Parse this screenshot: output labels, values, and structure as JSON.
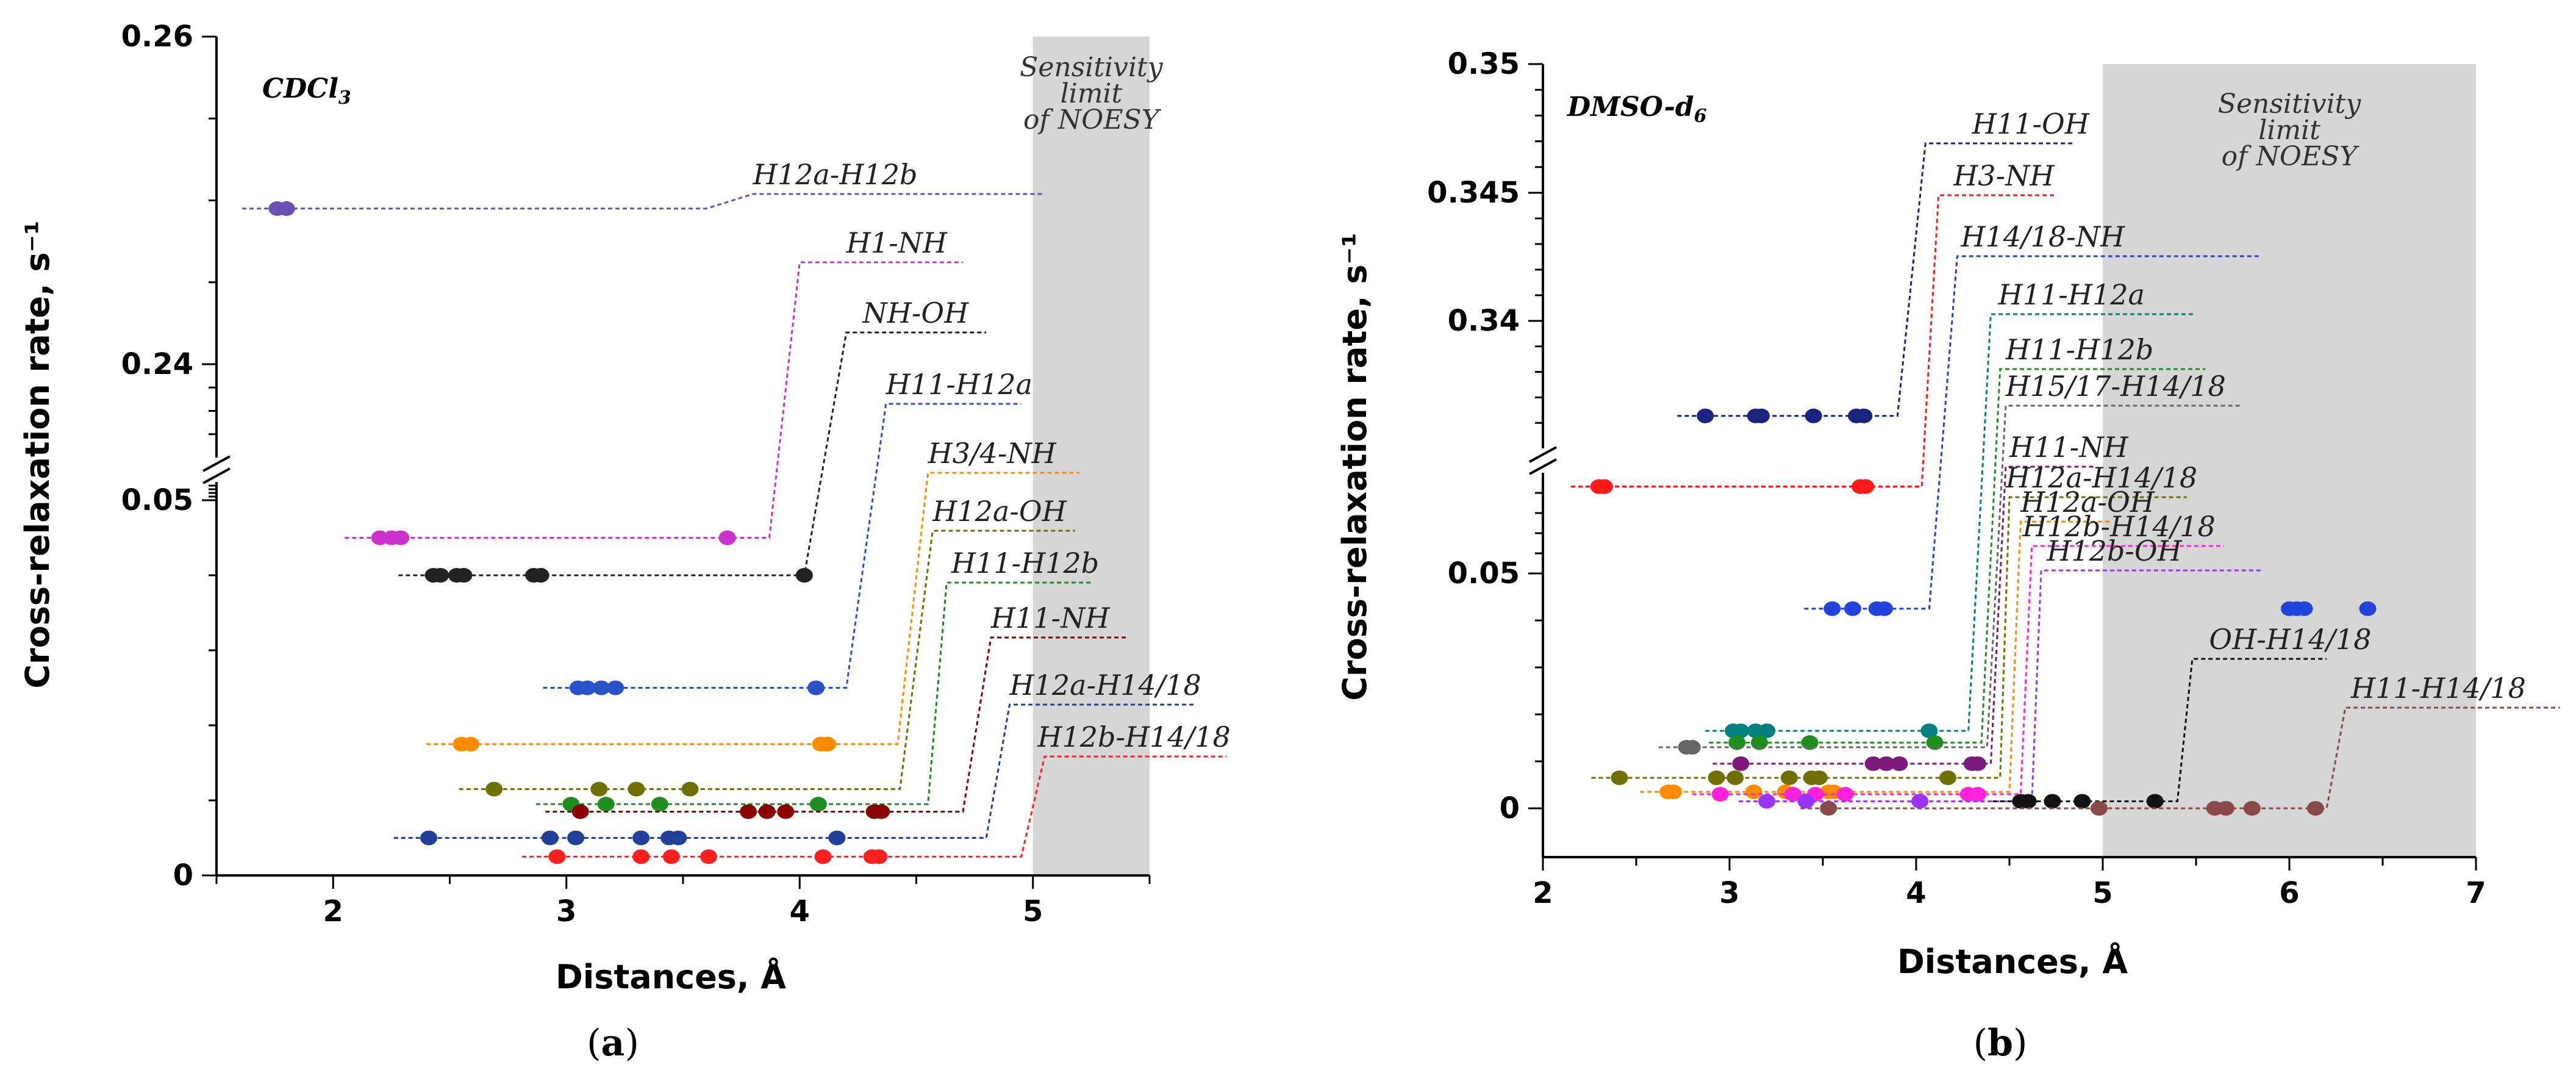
{
  "figure": {
    "captions": [
      {
        "open": "(",
        "letter": "a",
        "close": ")"
      },
      {
        "open": "(",
        "letter": "b",
        "close": ")"
      }
    ],
    "break_symbol": "//"
  },
  "chart_data": [
    {
      "type": "scatter",
      "id": "a",
      "solvent_label": {
        "base": "CDCl",
        "sub": "3"
      },
      "xlabel": "Distances, Å",
      "ylabel": "Cross-relaxation rate, s⁻¹",
      "xlim": [
        1.5,
        5.5
      ],
      "x_ticks": [
        2,
        3,
        4,
        5
      ],
      "y_ticks_lower": [
        "0",
        "0.05"
      ],
      "y_ticks_upper": [
        "0.24",
        "0.26"
      ],
      "y_axis_break": true,
      "sensitivity_limit": {
        "x_range": [
          5.0,
          5.5
        ],
        "lines": [
          "Sensitivity",
          "limit",
          "of NOESY"
        ]
      },
      "series": [
        {
          "label": "H12a-H12b",
          "color": "#6a50b4",
          "level": 0.2495,
          "step_x": [
            3.6,
            3.8
          ],
          "label_x": 3.8,
          "line_end": 5.05,
          "points": [
            {
              "x": 1.76,
              "y": 0.2495
            },
            {
              "x": 1.8,
              "y": 0.2495
            }
          ]
        },
        {
          "label": "H1-NH",
          "color": "#cc33cc",
          "level": 0.045,
          "step_x": [
            3.87,
            4.0
          ],
          "label_x": 4.2,
          "line_end": 4.7,
          "points": [
            {
              "x": 2.2,
              "y": 0.045
            },
            {
              "x": 2.25,
              "y": 0.045
            },
            {
              "x": 2.29,
              "y": 0.045
            },
            {
              "x": 3.69,
              "y": 0.045
            }
          ]
        },
        {
          "label": "NH-OH",
          "color": "#222222",
          "level": 0.04,
          "step_x": [
            4.02,
            4.2
          ],
          "label_x": 4.27,
          "line_end": 4.8,
          "points": [
            {
              "x": 2.43,
              "y": 0.04
            },
            {
              "x": 2.46,
              "y": 0.04
            },
            {
              "x": 2.53,
              "y": 0.04
            },
            {
              "x": 2.56,
              "y": 0.04
            },
            {
              "x": 2.86,
              "y": 0.04
            },
            {
              "x": 2.89,
              "y": 0.04
            },
            {
              "x": 4.02,
              "y": 0.04
            }
          ]
        },
        {
          "label": "H11-H12a",
          "color": "#2952c8",
          "level": 0.025,
          "step_x": [
            4.2,
            4.37
          ],
          "label_x": 4.37,
          "line_end": 4.95,
          "points": [
            {
              "x": 3.05,
              "y": 0.025
            },
            {
              "x": 3.09,
              "y": 0.025
            },
            {
              "x": 3.15,
              "y": 0.025
            },
            {
              "x": 3.21,
              "y": 0.025
            },
            {
              "x": 4.07,
              "y": 0.025
            }
          ]
        },
        {
          "label": "H3/4-NH",
          "color": "#ff8c00",
          "level": 0.0175,
          "step_x": [
            4.42,
            4.55
          ],
          "label_x": 4.55,
          "line_end": 5.2,
          "points": [
            {
              "x": 2.55,
              "y": 0.0175
            },
            {
              "x": 2.59,
              "y": 0.0175
            },
            {
              "x": 4.09,
              "y": 0.0175
            },
            {
              "x": 4.12,
              "y": 0.0175
            }
          ]
        },
        {
          "label": "H12a-OH",
          "color": "#707000",
          "level": 0.0115,
          "step_x": [
            4.43,
            4.57
          ],
          "label_x": 4.57,
          "line_end": 5.18,
          "points": [
            {
              "x": 2.69,
              "y": 0.0115
            },
            {
              "x": 3.14,
              "y": 0.0115
            },
            {
              "x": 3.3,
              "y": 0.0115
            },
            {
              "x": 3.53,
              "y": 0.0115
            }
          ]
        },
        {
          "label": "H11-H12b",
          "color": "#1e8f1e",
          "level": 0.0095,
          "step_x": [
            4.55,
            4.63
          ],
          "label_x": 4.65,
          "line_end": 5.25,
          "points": [
            {
              "x": 3.02,
              "y": 0.0095
            },
            {
              "x": 3.17,
              "y": 0.0095
            },
            {
              "x": 3.4,
              "y": 0.0095
            },
            {
              "x": 4.08,
              "y": 0.0095
            }
          ]
        },
        {
          "label": "H11-NH",
          "color": "#8b0000",
          "level": 0.0085,
          "step_x": [
            4.7,
            4.82
          ],
          "label_x": 4.82,
          "line_end": 5.4,
          "points": [
            {
              "x": 3.06,
              "y": 0.0085
            },
            {
              "x": 3.78,
              "y": 0.0085
            },
            {
              "x": 3.86,
              "y": 0.0085
            },
            {
              "x": 3.94,
              "y": 0.0085
            },
            {
              "x": 4.32,
              "y": 0.0085
            },
            {
              "x": 4.35,
              "y": 0.0085
            }
          ]
        },
        {
          "label": "H12a-H14/18",
          "color": "#1f3f99",
          "level": 0.005,
          "step_x": [
            4.8,
            4.9
          ],
          "label_x": 4.9,
          "line_end": 5.7,
          "points": [
            {
              "x": 2.41,
              "y": 0.005
            },
            {
              "x": 2.93,
              "y": 0.005
            },
            {
              "x": 3.04,
              "y": 0.005
            },
            {
              "x": 3.32,
              "y": 0.005
            },
            {
              "x": 3.44,
              "y": 0.005
            },
            {
              "x": 3.48,
              "y": 0.005
            },
            {
              "x": 4.16,
              "y": 0.005
            }
          ]
        },
        {
          "label": "H12b-H14/18",
          "color": "#ff2020",
          "level": 0.0025,
          "step_x": [
            4.95,
            5.05
          ],
          "label_x": 5.02,
          "line_end": 5.83,
          "points": [
            {
              "x": 2.96,
              "y": 0.0025
            },
            {
              "x": 3.32,
              "y": 0.0025
            },
            {
              "x": 3.45,
              "y": 0.0025
            },
            {
              "x": 3.61,
              "y": 0.0025
            },
            {
              "x": 4.1,
              "y": 0.0025
            },
            {
              "x": 4.31,
              "y": 0.0025
            },
            {
              "x": 4.34,
              "y": 0.0025
            }
          ]
        }
      ]
    },
    {
      "type": "scatter",
      "id": "b",
      "solvent_label": {
        "base": "DMSO-d",
        "sub": "6"
      },
      "xlabel": "Distances, Å",
      "ylabel": "Cross-relaxation rate, s⁻¹",
      "xlim": [
        2,
        7
      ],
      "x_ticks": [
        2,
        3,
        4,
        5,
        6,
        7
      ],
      "y_ticks_lower": [
        "0",
        "0.05"
      ],
      "y_ticks_upper": [
        "0.34",
        "0.345",
        "0.35"
      ],
      "y_axis_break": true,
      "sensitivity_limit": {
        "x_range": [
          5.0,
          7.0
        ],
        "lines": [
          "Sensitivity",
          "limit",
          "of NOESY"
        ]
      },
      "series": [
        {
          "label": "H11-OH",
          "color": "#1a237e",
          "level": 0.3363,
          "step_x": [
            3.9,
            4.05
          ],
          "label_x": 4.3,
          "line_end": 4.85,
          "points": [
            {
              "x": 2.87,
              "y": 0.3363
            },
            {
              "x": 3.14,
              "y": 0.3363
            },
            {
              "x": 3.17,
              "y": 0.3363
            },
            {
              "x": 3.45,
              "y": 0.3363
            },
            {
              "x": 3.68,
              "y": 0.3363
            },
            {
              "x": 3.72,
              "y": 0.3363
            }
          ]
        },
        {
          "label": "H3-NH",
          "color": "#ff1a1a",
          "level": 0.0685,
          "step_x": [
            4.03,
            4.12
          ],
          "label_x": 4.2,
          "line_end": 4.75,
          "points": [
            {
              "x": 2.3,
              "y": 0.0685
            },
            {
              "x": 2.33,
              "y": 0.0685
            },
            {
              "x": 3.7,
              "y": 0.0685
            },
            {
              "x": 3.73,
              "y": 0.0685
            }
          ]
        },
        {
          "label": "H14/18-NH",
          "color": "#2244dd",
          "level": 0.0425,
          "step_x": [
            4.07,
            4.22
          ],
          "label_x": 4.24,
          "line_end": 5.85,
          "points": [
            {
              "x": 3.55,
              "y": 0.0425
            },
            {
              "x": 3.66,
              "y": 0.0425
            },
            {
              "x": 3.79,
              "y": 0.0425
            },
            {
              "x": 3.83,
              "y": 0.0425
            },
            {
              "x": 6.0,
              "y": 0.0425
            },
            {
              "x": 6.04,
              "y": 0.0425
            },
            {
              "x": 6.08,
              "y": 0.0425
            },
            {
              "x": 6.42,
              "y": 0.0425
            }
          ]
        },
        {
          "label": "H11-H12a",
          "color": "#008080",
          "level": 0.0165,
          "step_x": [
            4.28,
            4.4
          ],
          "label_x": 4.44,
          "line_end": 5.5,
          "points": [
            {
              "x": 3.02,
              "y": 0.0165
            },
            {
              "x": 3.06,
              "y": 0.0165
            },
            {
              "x": 3.14,
              "y": 0.0165
            },
            {
              "x": 3.2,
              "y": 0.0165
            },
            {
              "x": 4.07,
              "y": 0.0165
            }
          ]
        },
        {
          "label": "H11-H12b",
          "color": "#1e8f1e",
          "level": 0.014,
          "step_x": [
            4.35,
            4.45
          ],
          "label_x": 4.48,
          "line_end": 5.55,
          "points": [
            {
              "x": 3.04,
              "y": 0.014
            },
            {
              "x": 3.16,
              "y": 0.014
            },
            {
              "x": 3.43,
              "y": 0.014
            },
            {
              "x": 4.1,
              "y": 0.014
            }
          ]
        },
        {
          "label": "H15/17-H14/18",
          "color": "#666666",
          "level": 0.013,
          "step_x": [
            4.38,
            4.48
          ],
          "label_x": 4.48,
          "line_end": 5.75,
          "points": [
            {
              "x": 2.77,
              "y": 0.013
            },
            {
              "x": 2.8,
              "y": 0.013
            }
          ]
        },
        {
          "label": "H11-NH",
          "color": "#7a1a7a",
          "level": 0.0095,
          "step_x": [
            4.4,
            4.48
          ],
          "label_x": 4.5,
          "line_end": 4.95,
          "points": [
            {
              "x": 3.06,
              "y": 0.0095
            },
            {
              "x": 3.77,
              "y": 0.0095
            },
            {
              "x": 3.84,
              "y": 0.0095
            },
            {
              "x": 3.91,
              "y": 0.0095
            },
            {
              "x": 4.3,
              "y": 0.0095
            },
            {
              "x": 4.33,
              "y": 0.0095
            }
          ]
        },
        {
          "label": "H12a-H14/18",
          "color": "#707000",
          "level": 0.0065,
          "step_x": [
            4.45,
            4.5
          ],
          "label_x": 4.48,
          "line_end": 5.45,
          "points": [
            {
              "x": 2.41,
              "y": 0.0065
            },
            {
              "x": 2.93,
              "y": 0.0065
            },
            {
              "x": 3.03,
              "y": 0.0065
            },
            {
              "x": 3.32,
              "y": 0.0065
            },
            {
              "x": 3.44,
              "y": 0.0065
            },
            {
              "x": 3.48,
              "y": 0.0065
            },
            {
              "x": 4.17,
              "y": 0.0065
            }
          ]
        },
        {
          "label": "H12a-OH",
          "color": "#ff8c00",
          "level": 0.0035,
          "step_x": [
            4.5,
            4.56
          ],
          "label_x": 4.56,
          "line_end": 5.05,
          "points": [
            {
              "x": 2.67,
              "y": 0.0035
            },
            {
              "x": 2.7,
              "y": 0.0035
            },
            {
              "x": 3.13,
              "y": 0.0035
            },
            {
              "x": 3.3,
              "y": 0.0035
            },
            {
              "x": 3.53,
              "y": 0.0035
            },
            {
              "x": 3.56,
              "y": 0.0035
            }
          ]
        },
        {
          "label": "H12b-H14/18",
          "color": "#ff22dd",
          "level": 0.003,
          "step_x": [
            4.56,
            4.62
          ],
          "label_x": 4.57,
          "line_end": 5.65,
          "points": [
            {
              "x": 2.95,
              "y": 0.003
            },
            {
              "x": 3.34,
              "y": 0.003
            },
            {
              "x": 3.46,
              "y": 0.003
            },
            {
              "x": 3.62,
              "y": 0.003
            },
            {
              "x": 4.28,
              "y": 0.003
            },
            {
              "x": 4.33,
              "y": 0.003
            }
          ]
        },
        {
          "label": "H12b-OH",
          "color": "#9933ff",
          "level": 0.0015,
          "step_x": [
            4.62,
            4.67
          ],
          "label_x": 4.7,
          "line_end": 5.85,
          "points": [
            {
              "x": 3.2,
              "y": 0.0015
            },
            {
              "x": 3.41,
              "y": 0.0015
            },
            {
              "x": 4.02,
              "y": 0.0015
            }
          ]
        },
        {
          "label": "OH-H14/18",
          "color": "#111111",
          "level": 0.0015,
          "step_x": [
            5.4,
            5.48
          ],
          "label_x": 5.57,
          "line_end": 6.2,
          "points": [
            {
              "x": 4.56,
              "y": 0.0015
            },
            {
              "x": 4.6,
              "y": 0.0015
            },
            {
              "x": 4.73,
              "y": 0.0015
            },
            {
              "x": 4.89,
              "y": 0.0015
            },
            {
              "x": 5.28,
              "y": 0.0015
            }
          ]
        },
        {
          "label": "H11-H14/18",
          "color": "#8b4a4a",
          "level": 0.0,
          "step_x": [
            6.2,
            6.3
          ],
          "label_x": 6.33,
          "line_end": 7.45,
          "points": [
            {
              "x": 3.53,
              "y": 0.0
            },
            {
              "x": 4.98,
              "y": 0.0
            },
            {
              "x": 5.6,
              "y": 0.0
            },
            {
              "x": 5.66,
              "y": 0.0
            },
            {
              "x": 5.8,
              "y": 0.0
            },
            {
              "x": 6.14,
              "y": 0.0
            }
          ]
        }
      ]
    }
  ]
}
